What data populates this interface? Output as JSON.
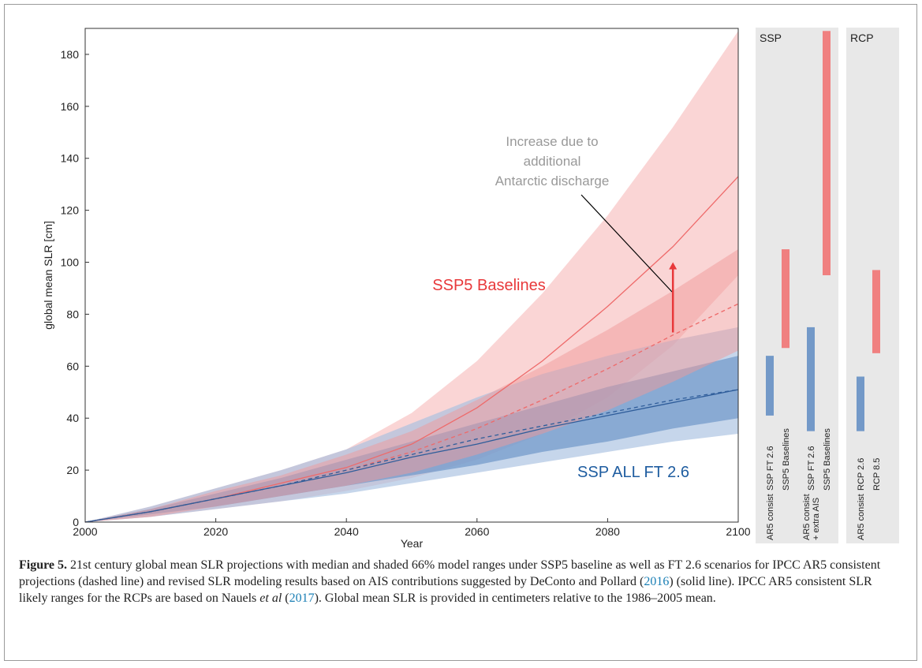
{
  "chart_data": {
    "type": "line",
    "xlabel": "Year",
    "ylabel": "global mean SLR [cm]",
    "xlim": [
      2000,
      2100
    ],
    "ylim": [
      0,
      190
    ],
    "xticks": [
      2000,
      2020,
      2040,
      2060,
      2080,
      2100
    ],
    "yticks": [
      0,
      20,
      40,
      60,
      80,
      100,
      120,
      140,
      160,
      180
    ],
    "x": [
      2000,
      2010,
      2020,
      2030,
      2040,
      2050,
      2060,
      2070,
      2080,
      2090,
      2100
    ],
    "bands": [
      {
        "color": "#f6b3b3",
        "opacity": 0.55,
        "low": [
          0,
          2,
          5,
          8,
          12,
          17,
          24,
          34,
          48,
          68,
          95
        ],
        "high": [
          0,
          6,
          13,
          20,
          28,
          42,
          62,
          88,
          118,
          152,
          189
        ]
      },
      {
        "color": "#a8c0e0",
        "opacity": 0.65,
        "low": [
          0,
          2,
          5,
          8,
          11,
          15,
          19,
          23,
          27,
          31,
          34
        ],
        "high": [
          0,
          6,
          13,
          20,
          28,
          38,
          48,
          57,
          64,
          70,
          75
        ]
      },
      {
        "color": "#6f97c9",
        "opacity": 0.7,
        "low": [
          0,
          3,
          6,
          10,
          14,
          18,
          22,
          27,
          31,
          36,
          40
        ],
        "high": [
          0,
          5,
          11,
          17,
          24,
          31,
          38,
          45,
          52,
          58,
          64
        ]
      },
      {
        "color": "#f09a9a",
        "opacity": 0.5,
        "low": [
          0,
          2,
          6,
          10,
          14,
          19,
          26,
          34,
          43,
          54,
          66
        ],
        "high": [
          0,
          5,
          12,
          18,
          26,
          35,
          47,
          60,
          74,
          89,
          105
        ]
      }
    ],
    "series": [
      {
        "color": "#ee6a6a",
        "dash": false,
        "values": [
          0,
          4,
          9,
          15,
          21,
          30,
          44,
          62,
          83,
          106,
          133
        ]
      },
      {
        "color": "#ee6a6a",
        "dash": true,
        "values": [
          0,
          4,
          9,
          14,
          20,
          27,
          36,
          47,
          59,
          72,
          84
        ]
      },
      {
        "color": "#2f5d9a",
        "dash": false,
        "values": [
          0,
          4,
          9,
          14,
          19,
          25,
          30,
          36,
          41,
          46,
          51
        ]
      },
      {
        "color": "#2f5d9a",
        "dash": true,
        "values": [
          0,
          4,
          9,
          14,
          20,
          26,
          32,
          37,
          42,
          47,
          51
        ]
      }
    ],
    "annotations": [
      {
        "text": "SSP5 Baselines",
        "color": "#e8383a"
      },
      {
        "text": "SSP ALL FT 2.6",
        "color": "#1f5da0"
      },
      {
        "text": [
          "Increase due to",
          "additional",
          "Antarctic discharge"
        ],
        "color": "#999999"
      }
    ],
    "arrow": {
      "x": 2090,
      "from": 73,
      "to": 100,
      "color": "#e8383a"
    },
    "side_panels": [
      {
        "title": "SSP",
        "groups": [
          {
            "label": [
              "AR5 consist"
            ],
            "bars": [
              {
                "name": "SSP FT 2.6",
                "color": "#7399c8",
                "range": [
                  41,
                  64
                ]
              },
              {
                "name": "SSP5 Baselines",
                "color": "#f08080",
                "range": [
                  67,
                  105
                ]
              }
            ]
          },
          {
            "label": [
              "AR5 consist",
              "+ extra AIS"
            ],
            "bars": [
              {
                "name": "SSP FT 2.6",
                "color": "#7399c8",
                "range": [
                  35,
                  75
                ]
              },
              {
                "name": "SSP5 Baselines",
                "color": "#f08080",
                "range": [
                  95,
                  189
                ]
              }
            ]
          }
        ]
      },
      {
        "title": "RCP",
        "groups": [
          {
            "label": [
              "AR5 consist"
            ],
            "bars": [
              {
                "name": "RCP 2.6",
                "color": "#7399c8",
                "range": [
                  35,
                  56
                ]
              },
              {
                "name": "RCP 8.5",
                "color": "#f08080",
                "range": [
                  65,
                  97
                ]
              }
            ]
          }
        ]
      }
    ]
  },
  "caption": {
    "label": "Figure 5.",
    "parts": [
      " 21st century global mean SLR projections with median and shaded 66% model ranges under SSP5 baseline as well as FT 2.6 scenarios for IPCC AR5 consistent projections (dashed line) and revised SLR modeling results based on AIS contributions suggested by DeConto and Pollard (",
      "2016",
      ") (solid line). IPCC AR5 consistent SLR likely ranges for the RCPs are based on Nauels ",
      "et al",
      " (",
      "2017",
      "). Global mean SLR is provided in centimeters relative to the 1986–2005 mean."
    ]
  }
}
